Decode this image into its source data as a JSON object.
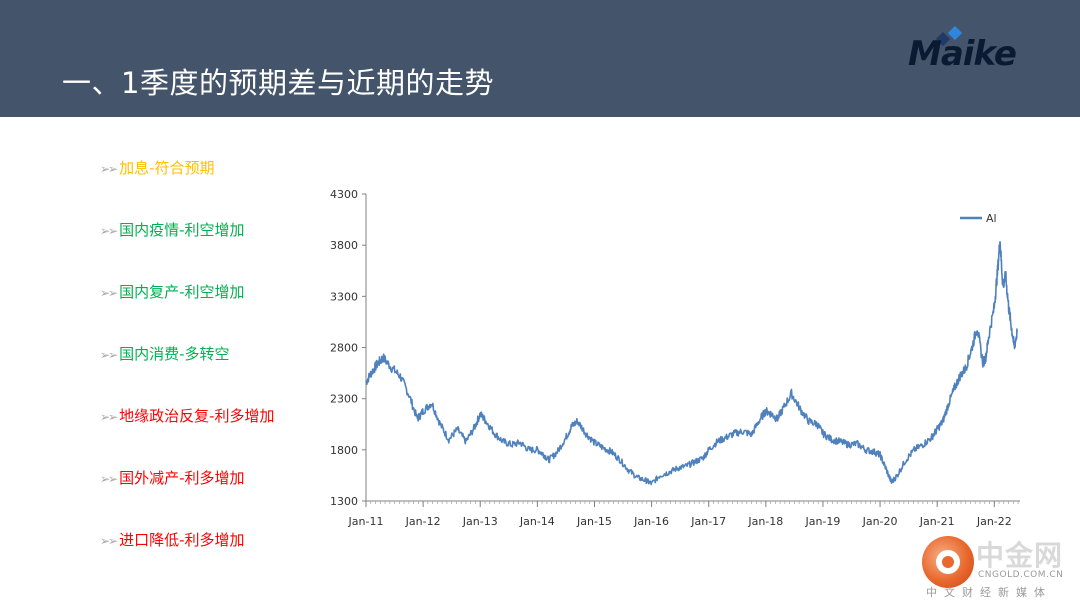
{
  "header": {
    "title": "一、1季度的预期差与近期的走势",
    "logo_text": "Maike",
    "background_color": "#44546a"
  },
  "bullets": [
    {
      "label": "加息-符合预期",
      "color": "#ffc000"
    },
    {
      "label": "国内疫情-利空增加",
      "color": "#00b050"
    },
    {
      "label": "国内复产-利空增加",
      "color": "#00b050"
    },
    {
      "label": "国内消费-多转空",
      "color": "#00b050"
    },
    {
      "label": "地缘政治反复-利多增加",
      "color": "#ff0000"
    },
    {
      "label": "国外减产-利多增加",
      "color": "#ff0000"
    },
    {
      "label": "进口降低-利多增加",
      "color": "#ff0000"
    }
  ],
  "chart_data": {
    "type": "line",
    "title": "",
    "xlabel": "",
    "ylabel": "",
    "ylim": [
      1300,
      4300
    ],
    "yticks": [
      1300,
      1800,
      2300,
      2800,
      3300,
      3800,
      4300
    ],
    "xticks": [
      "Jan-11",
      "Jan-12",
      "Jan-13",
      "Jan-14",
      "Jan-15",
      "Jan-16",
      "Jan-17",
      "Jan-18",
      "Jan-19",
      "Jan-20",
      "Jan-21",
      "Jan-22"
    ],
    "xlim": [
      2011.0,
      2022.45
    ],
    "legend": "top-right",
    "grid": false,
    "series": [
      {
        "name": "Al",
        "color": "#4f81bd",
        "x": [
          2011.0,
          2011.1,
          2011.2,
          2011.3,
          2011.45,
          2011.6,
          2011.75,
          2011.9,
          2012.0,
          2012.15,
          2012.3,
          2012.45,
          2012.6,
          2012.75,
          2012.9,
          2013.0,
          2013.1,
          2013.25,
          2013.4,
          2013.55,
          2013.7,
          2013.85,
          2014.0,
          2014.1,
          2014.2,
          2014.35,
          2014.5,
          2014.6,
          2014.7,
          2014.85,
          2015.0,
          2015.15,
          2015.3,
          2015.45,
          2015.6,
          2015.75,
          2015.9,
          2016.0,
          2016.15,
          2016.3,
          2016.45,
          2016.6,
          2016.75,
          2016.9,
          2017.0,
          2017.15,
          2017.3,
          2017.45,
          2017.6,
          2017.75,
          2017.9,
          2018.0,
          2018.1,
          2018.2,
          2018.3,
          2018.45,
          2018.6,
          2018.75,
          2018.9,
          2019.0,
          2019.15,
          2019.3,
          2019.45,
          2019.6,
          2019.75,
          2019.9,
          2020.0,
          2020.1,
          2020.2,
          2020.3,
          2020.45,
          2020.6,
          2020.75,
          2020.9,
          2021.0,
          2021.1,
          2021.2,
          2021.3,
          2021.4,
          2021.5,
          2021.6,
          2021.7,
          2021.8,
          2021.85,
          2021.9,
          2022.0,
          2022.05,
          2022.1,
          2022.15,
          2022.2,
          2022.25,
          2022.3,
          2022.35,
          2022.4
        ],
        "values": [
          2460,
          2560,
          2640,
          2700,
          2600,
          2520,
          2340,
          2100,
          2180,
          2260,
          2050,
          1900,
          2000,
          1880,
          2020,
          2150,
          2080,
          1960,
          1880,
          1850,
          1870,
          1800,
          1800,
          1760,
          1700,
          1780,
          1920,
          2030,
          2080,
          1960,
          1870,
          1820,
          1780,
          1700,
          1600,
          1530,
          1500,
          1470,
          1550,
          1580,
          1620,
          1640,
          1680,
          1720,
          1800,
          1880,
          1920,
          1960,
          1980,
          1950,
          2100,
          2180,
          2150,
          2100,
          2200,
          2350,
          2200,
          2080,
          2050,
          1960,
          1900,
          1880,
          1850,
          1860,
          1800,
          1780,
          1750,
          1620,
          1480,
          1550,
          1700,
          1800,
          1850,
          1920,
          2000,
          2080,
          2250,
          2400,
          2520,
          2600,
          2780,
          3000,
          2650,
          2700,
          2900,
          3200,
          3500,
          3850,
          3400,
          3500,
          3200,
          3000,
          2800,
          2950
        ]
      }
    ]
  },
  "watermark": {
    "main": "中金网",
    "domain": "CNGOLD.COM.CN",
    "sub": "中文财经新媒体"
  }
}
